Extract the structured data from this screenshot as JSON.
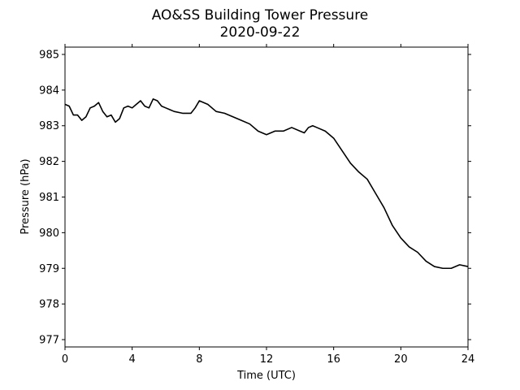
{
  "chart_data": {
    "type": "line",
    "title": "AO&SS Building Tower Pressure",
    "subtitle": "2020-09-22",
    "x_label": "Time (UTC)",
    "y_label": "Pressure (hPa)",
    "x": [
      0,
      0.25,
      0.5,
      0.75,
      1,
      1.25,
      1.5,
      1.75,
      2,
      2.25,
      2.5,
      2.75,
      3,
      3.25,
      3.5,
      3.75,
      4,
      4.25,
      4.5,
      4.75,
      5,
      5.25,
      5.5,
      5.75,
      6,
      6.25,
      6.5,
      7,
      7.5,
      7.75,
      8,
      8.5,
      9,
      9.5,
      10,
      10.5,
      11,
      11.5,
      12,
      12.5,
      13,
      13.5,
      14,
      14.25,
      14.5,
      14.75,
      15,
      15.5,
      16,
      16.5,
      17,
      17.5,
      18,
      18.5,
      19,
      19.5,
      20,
      20.5,
      21,
      21.5,
      22,
      22.5,
      23,
      23.5,
      24
    ],
    "series": [
      {
        "name": "Pressure",
        "color": "#000000",
        "values": [
          983.6,
          983.55,
          983.3,
          983.3,
          983.15,
          983.25,
          983.5,
          983.55,
          983.65,
          983.4,
          983.25,
          983.3,
          983.1,
          983.2,
          983.5,
          983.55,
          983.5,
          983.6,
          983.7,
          983.55,
          983.5,
          983.75,
          983.7,
          983.55,
          983.5,
          983.45,
          983.4,
          983.35,
          983.35,
          983.5,
          983.7,
          983.6,
          983.4,
          983.35,
          983.25,
          983.15,
          983.05,
          982.85,
          982.75,
          982.85,
          982.85,
          982.95,
          982.85,
          982.8,
          982.95,
          983.0,
          982.95,
          982.85,
          982.65,
          982.3,
          981.95,
          981.7,
          981.5,
          981.1,
          980.7,
          980.2,
          979.85,
          979.6,
          979.45,
          979.2,
          979.05,
          979.0,
          979.0,
          979.1,
          979.05
        ]
      }
    ],
    "xlim": [
      0,
      24
    ],
    "xticks": [
      0,
      4,
      8,
      12,
      16,
      20,
      24
    ],
    "ylim": [
      976.795,
      985.205
    ],
    "yticks": [
      977,
      978,
      979,
      980,
      981,
      982,
      983,
      984,
      985
    ],
    "grid": false
  }
}
